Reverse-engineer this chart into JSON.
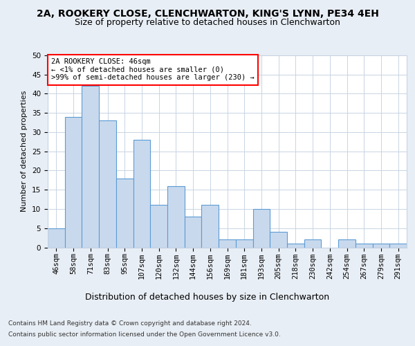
{
  "title1": "2A, ROOKERY CLOSE, CLENCHWARTON, KING'S LYNN, PE34 4EH",
  "title2": "Size of property relative to detached houses in Clenchwarton",
  "xlabel": "Distribution of detached houses by size in Clenchwarton",
  "ylabel": "Number of detached properties",
  "categories": [
    "46sqm",
    "58sqm",
    "71sqm",
    "83sqm",
    "95sqm",
    "107sqm",
    "120sqm",
    "132sqm",
    "144sqm",
    "156sqm",
    "169sqm",
    "181sqm",
    "193sqm",
    "205sqm",
    "218sqm",
    "230sqm",
    "242sqm",
    "254sqm",
    "267sqm",
    "279sqm",
    "291sqm"
  ],
  "values": [
    5,
    34,
    42,
    33,
    18,
    28,
    11,
    16,
    8,
    11,
    2,
    2,
    10,
    4,
    1,
    2,
    0,
    2,
    1,
    1,
    1
  ],
  "bar_color": "#c9d9ed",
  "bar_edge_color": "#5b9bd5",
  "annotation_box_text": [
    "2A ROOKERY CLOSE: 46sqm",
    "← <1% of detached houses are smaller (0)",
    ">99% of semi-detached houses are larger (230) →"
  ],
  "annotation_box_color": "white",
  "annotation_box_edge_color": "red",
  "ylim": [
    0,
    50
  ],
  "yticks": [
    0,
    5,
    10,
    15,
    20,
    25,
    30,
    35,
    40,
    45,
    50
  ],
  "background_color": "#e8eef5",
  "plot_bg_color": "white",
  "grid_color": "#c8d4e3",
  "footer1": "Contains HM Land Registry data © Crown copyright and database right 2024.",
  "footer2": "Contains public sector information licensed under the Open Government Licence v3.0.",
  "title1_fontsize": 10,
  "title2_fontsize": 9,
  "xlabel_fontsize": 9,
  "ylabel_fontsize": 8,
  "tick_fontsize": 7.5,
  "footer_fontsize": 6.5
}
